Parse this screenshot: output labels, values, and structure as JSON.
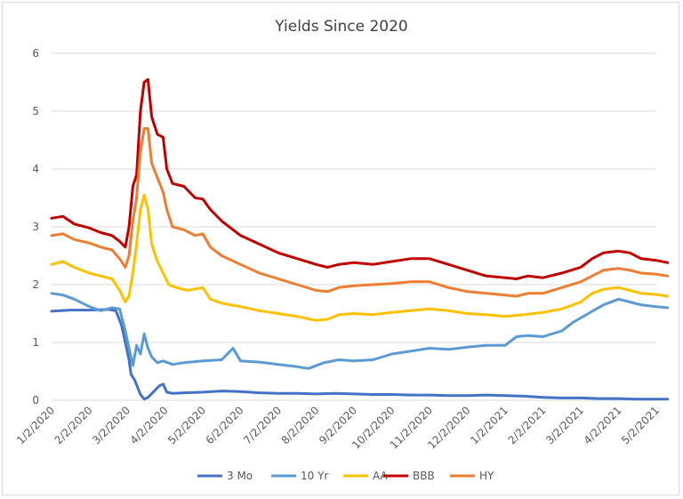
{
  "chart_data": {
    "type": "line",
    "title": "Yields Since 2020",
    "xlabel": "",
    "ylabel": "",
    "ylim": [
      0,
      6
    ],
    "yticks": [
      "0",
      "1",
      "2",
      "3",
      "4",
      "5",
      "6"
    ],
    "xticks": [
      "1/2/2020",
      "2/2/2020",
      "3/2/2020",
      "4/2/2020",
      "5/2/2020",
      "6/2/2020",
      "7/2/2020",
      "8/2/2020",
      "9/2/2020",
      "10/2/2020",
      "11/2/2020",
      "12/2/2020",
      "1/2/2021",
      "2/2/2021",
      "3/2/2021",
      "4/2/2021",
      "5/2/2021"
    ],
    "grid": "horizontal",
    "legend_position": "bottom",
    "series": [
      {
        "name": "3 Mo",
        "color": "#4472c4",
        "points": [
          [
            0,
            1.54
          ],
          [
            0.5,
            1.56
          ],
          [
            1.0,
            1.56
          ],
          [
            1.5,
            1.57
          ],
          [
            1.7,
            1.55
          ],
          [
            1.85,
            1.3
          ],
          [
            1.95,
            1.0
          ],
          [
            2.05,
            0.7
          ],
          [
            2.1,
            0.45
          ],
          [
            2.2,
            0.35
          ],
          [
            2.35,
            0.1
          ],
          [
            2.45,
            0.02
          ],
          [
            2.55,
            0.05
          ],
          [
            2.7,
            0.15
          ],
          [
            2.85,
            0.25
          ],
          [
            2.95,
            0.28
          ],
          [
            3.05,
            0.14
          ],
          [
            3.2,
            0.12
          ],
          [
            3.5,
            0.13
          ],
          [
            4.0,
            0.14
          ],
          [
            4.5,
            0.16
          ],
          [
            5.0,
            0.15
          ],
          [
            5.5,
            0.13
          ],
          [
            6.0,
            0.12
          ],
          [
            6.5,
            0.12
          ],
          [
            7.0,
            0.11
          ],
          [
            7.5,
            0.12
          ],
          [
            8.0,
            0.11
          ],
          [
            8.5,
            0.1
          ],
          [
            9.0,
            0.1
          ],
          [
            9.5,
            0.09
          ],
          [
            10.0,
            0.09
          ],
          [
            10.5,
            0.08
          ],
          [
            11.0,
            0.08
          ],
          [
            11.5,
            0.09
          ],
          [
            12.0,
            0.08
          ],
          [
            12.5,
            0.07
          ],
          [
            13.0,
            0.05
          ],
          [
            13.5,
            0.04
          ],
          [
            14.0,
            0.04
          ],
          [
            14.5,
            0.03
          ],
          [
            15.0,
            0.03
          ],
          [
            15.5,
            0.02
          ],
          [
            16.0,
            0.02
          ],
          [
            16.3,
            0.02
          ]
        ]
      },
      {
        "name": "10 Yr",
        "color": "#5b9bd5",
        "points": [
          [
            0,
            1.85
          ],
          [
            0.3,
            1.82
          ],
          [
            0.6,
            1.75
          ],
          [
            1.0,
            1.62
          ],
          [
            1.3,
            1.55
          ],
          [
            1.6,
            1.6
          ],
          [
            1.8,
            1.58
          ],
          [
            1.95,
            1.2
          ],
          [
            2.05,
            0.9
          ],
          [
            2.15,
            0.6
          ],
          [
            2.25,
            0.95
          ],
          [
            2.35,
            0.8
          ],
          [
            2.45,
            1.15
          ],
          [
            2.55,
            0.9
          ],
          [
            2.65,
            0.75
          ],
          [
            2.8,
            0.65
          ],
          [
            2.95,
            0.68
          ],
          [
            3.2,
            0.62
          ],
          [
            3.5,
            0.65
          ],
          [
            4.0,
            0.68
          ],
          [
            4.5,
            0.7
          ],
          [
            4.8,
            0.9
          ],
          [
            5.0,
            0.68
          ],
          [
            5.5,
            0.66
          ],
          [
            6.0,
            0.62
          ],
          [
            6.5,
            0.58
          ],
          [
            6.8,
            0.55
          ],
          [
            7.2,
            0.65
          ],
          [
            7.6,
            0.7
          ],
          [
            8.0,
            0.68
          ],
          [
            8.5,
            0.7
          ],
          [
            9.0,
            0.8
          ],
          [
            9.5,
            0.85
          ],
          [
            10.0,
            0.9
          ],
          [
            10.5,
            0.88
          ],
          [
            11.0,
            0.92
          ],
          [
            11.5,
            0.95
          ],
          [
            12.0,
            0.95
          ],
          [
            12.3,
            1.1
          ],
          [
            12.6,
            1.12
          ],
          [
            13.0,
            1.1
          ],
          [
            13.5,
            1.2
          ],
          [
            13.8,
            1.35
          ],
          [
            14.2,
            1.5
          ],
          [
            14.6,
            1.65
          ],
          [
            15.0,
            1.75
          ],
          [
            15.3,
            1.7
          ],
          [
            15.6,
            1.65
          ],
          [
            16.0,
            1.62
          ],
          [
            16.3,
            1.6
          ]
        ]
      },
      {
        "name": "AA",
        "color": "#ffc000",
        "points": [
          [
            0,
            2.35
          ],
          [
            0.3,
            2.4
          ],
          [
            0.6,
            2.3
          ],
          [
            1.0,
            2.2
          ],
          [
            1.3,
            2.15
          ],
          [
            1.6,
            2.1
          ],
          [
            1.8,
            1.9
          ],
          [
            1.95,
            1.7
          ],
          [
            2.05,
            1.8
          ],
          [
            2.15,
            2.2
          ],
          [
            2.25,
            2.7
          ],
          [
            2.35,
            3.3
          ],
          [
            2.45,
            3.55
          ],
          [
            2.55,
            3.3
          ],
          [
            2.65,
            2.7
          ],
          [
            2.8,
            2.4
          ],
          [
            2.95,
            2.2
          ],
          [
            3.1,
            2.0
          ],
          [
            3.3,
            1.95
          ],
          [
            3.6,
            1.9
          ],
          [
            4.0,
            1.95
          ],
          [
            4.2,
            1.75
          ],
          [
            4.5,
            1.68
          ],
          [
            5.0,
            1.62
          ],
          [
            5.5,
            1.55
          ],
          [
            6.0,
            1.5
          ],
          [
            6.5,
            1.45
          ],
          [
            7.0,
            1.38
          ],
          [
            7.3,
            1.4
          ],
          [
            7.6,
            1.48
          ],
          [
            8.0,
            1.5
          ],
          [
            8.5,
            1.48
          ],
          [
            9.0,
            1.52
          ],
          [
            9.5,
            1.55
          ],
          [
            10.0,
            1.58
          ],
          [
            10.5,
            1.55
          ],
          [
            11.0,
            1.5
          ],
          [
            11.5,
            1.48
          ],
          [
            12.0,
            1.45
          ],
          [
            12.5,
            1.48
          ],
          [
            13.0,
            1.52
          ],
          [
            13.5,
            1.58
          ],
          [
            14.0,
            1.7
          ],
          [
            14.3,
            1.85
          ],
          [
            14.6,
            1.92
          ],
          [
            15.0,
            1.95
          ],
          [
            15.3,
            1.9
          ],
          [
            15.6,
            1.85
          ],
          [
            16.0,
            1.83
          ],
          [
            16.3,
            1.8
          ]
        ]
      },
      {
        "name": "BBB",
        "color": "#c00000",
        "points": [
          [
            0,
            3.15
          ],
          [
            0.3,
            3.18
          ],
          [
            0.6,
            3.05
          ],
          [
            1.0,
            2.98
          ],
          [
            1.3,
            2.9
          ],
          [
            1.6,
            2.85
          ],
          [
            1.8,
            2.75
          ],
          [
            1.95,
            2.65
          ],
          [
            2.05,
            3.0
          ],
          [
            2.15,
            3.7
          ],
          [
            2.25,
            3.9
          ],
          [
            2.35,
            5.0
          ],
          [
            2.45,
            5.5
          ],
          [
            2.55,
            5.55
          ],
          [
            2.65,
            4.9
          ],
          [
            2.8,
            4.6
          ],
          [
            2.95,
            4.55
          ],
          [
            3.05,
            4.0
          ],
          [
            3.2,
            3.75
          ],
          [
            3.5,
            3.7
          ],
          [
            3.8,
            3.5
          ],
          [
            4.0,
            3.48
          ],
          [
            4.2,
            3.3
          ],
          [
            4.5,
            3.1
          ],
          [
            5.0,
            2.85
          ],
          [
            5.5,
            2.7
          ],
          [
            6.0,
            2.55
          ],
          [
            6.5,
            2.45
          ],
          [
            7.0,
            2.35
          ],
          [
            7.3,
            2.3
          ],
          [
            7.6,
            2.35
          ],
          [
            8.0,
            2.38
          ],
          [
            8.5,
            2.35
          ],
          [
            9.0,
            2.4
          ],
          [
            9.5,
            2.45
          ],
          [
            10.0,
            2.45
          ],
          [
            10.5,
            2.35
          ],
          [
            11.0,
            2.25
          ],
          [
            11.5,
            2.15
          ],
          [
            12.0,
            2.12
          ],
          [
            12.3,
            2.1
          ],
          [
            12.6,
            2.15
          ],
          [
            13.0,
            2.12
          ],
          [
            13.5,
            2.2
          ],
          [
            14.0,
            2.3
          ],
          [
            14.3,
            2.45
          ],
          [
            14.6,
            2.55
          ],
          [
            15.0,
            2.58
          ],
          [
            15.3,
            2.55
          ],
          [
            15.6,
            2.45
          ],
          [
            16.0,
            2.42
          ],
          [
            16.3,
            2.38
          ]
        ]
      },
      {
        "name": "HY",
        "color": "#ed7d31",
        "points": [
          [
            0,
            2.85
          ],
          [
            0.3,
            2.88
          ],
          [
            0.6,
            2.78
          ],
          [
            1.0,
            2.72
          ],
          [
            1.3,
            2.65
          ],
          [
            1.6,
            2.6
          ],
          [
            1.8,
            2.45
          ],
          [
            1.95,
            2.3
          ],
          [
            2.05,
            2.5
          ],
          [
            2.15,
            3.1
          ],
          [
            2.25,
            3.5
          ],
          [
            2.35,
            4.3
          ],
          [
            2.45,
            4.7
          ],
          [
            2.55,
            4.7
          ],
          [
            2.65,
            4.1
          ],
          [
            2.8,
            3.85
          ],
          [
            2.95,
            3.6
          ],
          [
            3.05,
            3.3
          ],
          [
            3.2,
            3.0
          ],
          [
            3.5,
            2.95
          ],
          [
            3.8,
            2.85
          ],
          [
            4.0,
            2.88
          ],
          [
            4.2,
            2.65
          ],
          [
            4.5,
            2.5
          ],
          [
            5.0,
            2.35
          ],
          [
            5.5,
            2.2
          ],
          [
            6.0,
            2.1
          ],
          [
            6.5,
            2.0
          ],
          [
            7.0,
            1.9
          ],
          [
            7.3,
            1.88
          ],
          [
            7.6,
            1.95
          ],
          [
            8.0,
            1.98
          ],
          [
            8.5,
            2.0
          ],
          [
            9.0,
            2.02
          ],
          [
            9.5,
            2.05
          ],
          [
            10.0,
            2.05
          ],
          [
            10.5,
            1.95
          ],
          [
            11.0,
            1.88
          ],
          [
            11.5,
            1.85
          ],
          [
            12.0,
            1.82
          ],
          [
            12.3,
            1.8
          ],
          [
            12.6,
            1.85
          ],
          [
            13.0,
            1.85
          ],
          [
            13.5,
            1.95
          ],
          [
            14.0,
            2.05
          ],
          [
            14.3,
            2.15
          ],
          [
            14.6,
            2.25
          ],
          [
            15.0,
            2.28
          ],
          [
            15.3,
            2.25
          ],
          [
            15.6,
            2.2
          ],
          [
            16.0,
            2.18
          ],
          [
            16.3,
            2.15
          ]
        ]
      }
    ]
  }
}
